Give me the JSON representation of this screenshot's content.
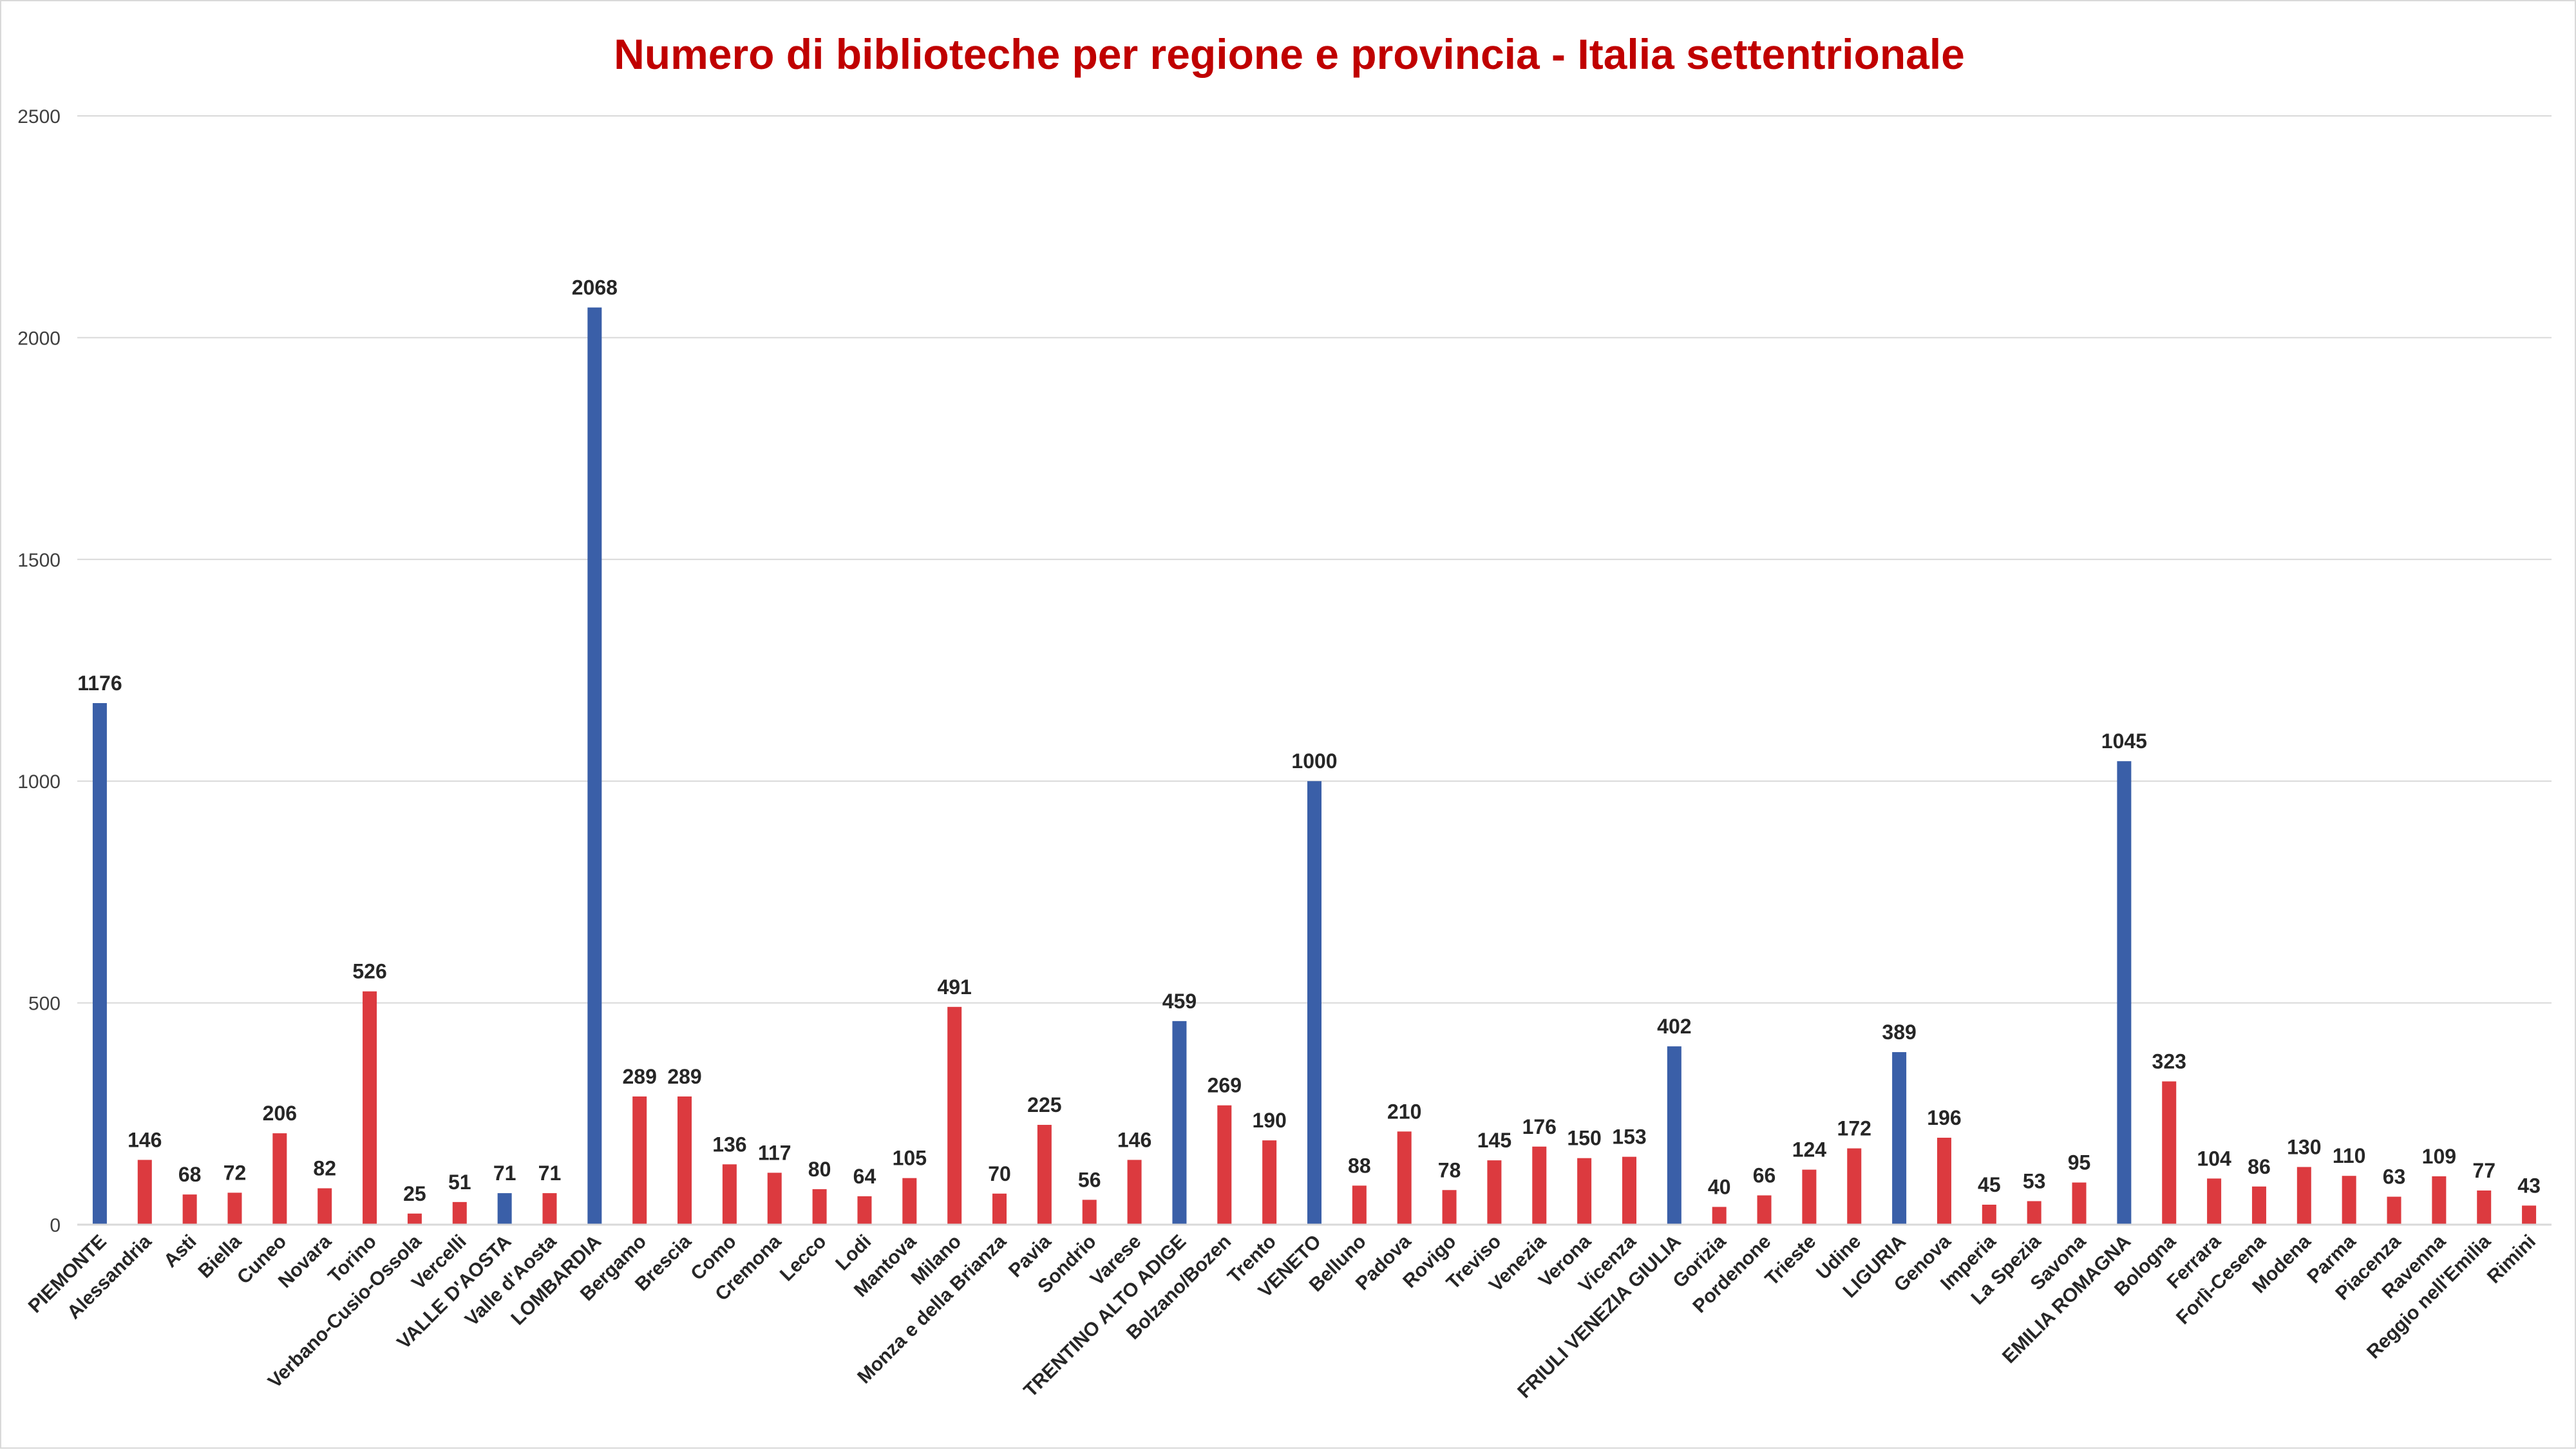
{
  "chart_data": {
    "type": "bar",
    "title": "Numero di biblioteche per regione e provincia - Italia settentrionale",
    "xlabel": "",
    "ylabel": "",
    "ylim": [
      0,
      2500
    ],
    "yticks": [
      "0",
      "500",
      "1000",
      "1500",
      "2000",
      "2500"
    ],
    "grid": true,
    "legend": "none",
    "colors": {
      "region": "#3a5fa8",
      "province": "#dc3a3f",
      "title": "#c00000",
      "grid": "#d9d9d9",
      "text": "#404040"
    },
    "categories": [
      "PIEMONTE",
      "Alessandria",
      "Asti",
      "Biella",
      "Cuneo",
      "Novara",
      "Torino",
      "Verbano-Cusio-Ossola",
      "Vercelli",
      "VALLE D'AOSTA",
      "Valle d'Aosta",
      "LOMBARDIA",
      "Bergamo",
      "Brescia",
      "Como",
      "Cremona",
      "Lecco",
      "Lodi",
      "Mantova",
      "Milano",
      "Monza e della Brianza",
      "Pavia",
      "Sondrio",
      "Varese",
      "TRENTINO ALTO ADIGE",
      "Bolzano/Bozen",
      "Trento",
      "VENETO",
      "Belluno",
      "Padova",
      "Rovigo",
      "Treviso",
      "Venezia",
      "Verona",
      "Vicenza",
      "FRIULI VENEZIA GIULIA",
      "Gorizia",
      "Pordenone",
      "Trieste",
      "Udine",
      "LIGURIA",
      "Genova",
      "Imperia",
      "La Spezia",
      "Savona",
      "EMILIA ROMAGNA",
      "Bologna",
      "Ferrara",
      "Forlì-Cesena",
      "Modena",
      "Parma",
      "Piacenza",
      "Ravenna",
      "Reggio nell'Emilia",
      "Rimini"
    ],
    "values": [
      1176,
      146,
      68,
      72,
      206,
      82,
      526,
      25,
      51,
      71,
      71,
      2068,
      289,
      289,
      136,
      117,
      80,
      64,
      105,
      491,
      70,
      225,
      56,
      146,
      459,
      269,
      190,
      1000,
      88,
      210,
      78,
      145,
      176,
      150,
      153,
      402,
      40,
      66,
      124,
      172,
      389,
      196,
      45,
      53,
      95,
      1045,
      323,
      104,
      86,
      130,
      110,
      63,
      109,
      77,
      43
    ],
    "is_region": [
      true,
      false,
      false,
      false,
      false,
      false,
      false,
      false,
      false,
      true,
      false,
      true,
      false,
      false,
      false,
      false,
      false,
      false,
      false,
      false,
      false,
      false,
      false,
      false,
      true,
      false,
      false,
      true,
      false,
      false,
      false,
      false,
      false,
      false,
      false,
      true,
      false,
      false,
      false,
      false,
      true,
      false,
      false,
      false,
      false,
      true,
      false,
      false,
      false,
      false,
      false,
      false,
      false,
      false,
      false
    ]
  }
}
